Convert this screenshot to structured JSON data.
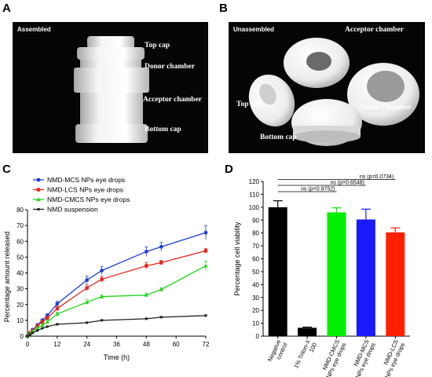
{
  "panels": {
    "a": "A",
    "b": "B",
    "c": "C",
    "d": "D"
  },
  "photo_a": {
    "title": "Assembled",
    "labels": [
      "Top cap",
      "Donor chamber",
      "Acceptor chamber",
      "Bottom cap"
    ]
  },
  "photo_b": {
    "title": "Unassembled",
    "labels": [
      "Acceptor chamber",
      "Top cap",
      "Donor Chamber",
      "Bottom cap"
    ]
  },
  "chart_data": [
    {
      "type": "line",
      "xlabel": "Time (h)",
      "ylabel": "Percentage amount released",
      "xlim": [
        0,
        72
      ],
      "ylim": [
        0,
        80
      ],
      "xticks": [
        0,
        12,
        24,
        36,
        48,
        60,
        72
      ],
      "yticks": [
        0,
        10,
        20,
        30,
        40,
        50,
        60,
        70,
        80
      ],
      "legend_position": "top-left",
      "grid": false,
      "series": [
        {
          "name": "NMD-MCS NPs eye drops",
          "color": "#1f3fd6",
          "marker": "circle",
          "x": [
            0,
            1,
            2,
            4,
            6,
            8,
            12,
            24,
            30,
            48,
            54,
            72
          ],
          "y": [
            0,
            2,
            4,
            7,
            10,
            13,
            20.5,
            35.5,
            41.5,
            53.5,
            56.5,
            65.5
          ],
          "err": [
            0,
            0.5,
            0.6,
            0.8,
            1,
            1.2,
            1.5,
            2.5,
            2.5,
            3,
            2.8,
            4.5
          ]
        },
        {
          "name": "NMD-LCS NPs eye drops",
          "color": "#e5261f",
          "marker": "square",
          "x": [
            0,
            1,
            2,
            4,
            6,
            8,
            12,
            24,
            30,
            48,
            54,
            72
          ],
          "y": [
            0,
            2,
            3.5,
            6.5,
            9,
            11.5,
            17.5,
            30.5,
            36,
            44.5,
            46.5,
            54
          ],
          "err": [
            0,
            0.5,
            0.6,
            0.8,
            1,
            1.2,
            1.5,
            2,
            2,
            2,
            1.5,
            1.5
          ]
        },
        {
          "name": "NMD-CMCS NPs eye drops",
          "color": "#22d61e",
          "marker": "triangle",
          "x": [
            0,
            1,
            2,
            4,
            6,
            8,
            12,
            24,
            30,
            48,
            54,
            72
          ],
          "y": [
            0,
            1.5,
            3,
            5,
            7,
            9,
            14,
            21.5,
            25,
            26,
            29.5,
            44.5
          ],
          "err": [
            0,
            0.5,
            0.5,
            0.6,
            0.8,
            1,
            1.2,
            1.5,
            1,
            1,
            1,
            3
          ]
        },
        {
          "name": "NMD suspension",
          "color": "#222222",
          "marker": "square",
          "x": [
            0,
            1,
            2,
            4,
            6,
            8,
            12,
            24,
            30,
            48,
            54,
            72
          ],
          "y": [
            0,
            1,
            2,
            3.5,
            5,
            6,
            7.5,
            8.5,
            10,
            11,
            12,
            13
          ],
          "err": [
            0,
            0.3,
            0.3,
            0.4,
            0.4,
            0.4,
            0.5,
            0.5,
            0.5,
            0.5,
            0.5,
            0.5
          ]
        }
      ]
    },
    {
      "type": "bar",
      "ylabel": "Percentage cell viability",
      "ylim": [
        0,
        120
      ],
      "yticks": [
        0,
        10,
        20,
        30,
        40,
        50,
        60,
        70,
        80,
        90,
        100,
        110,
        120
      ],
      "grid": false,
      "categories": [
        "Negative control",
        "1% Triton-X 100",
        "NMD-CMCS NPs eye drops",
        "NMD-MCS NPs eye drops",
        "NMD-LCS NPs eye drops"
      ],
      "category_lines": [
        [
          "Negative",
          "control"
        ],
        [
          "1% Triton-X",
          "100"
        ],
        [
          "NMD-CMCS",
          "NPs eye drops"
        ],
        [
          "NMD-MCS",
          "NPs eye drops"
        ],
        [
          "NMD-LCS",
          "NPs eye drops"
        ]
      ],
      "values": [
        100,
        6.5,
        96,
        90.5,
        80.5
      ],
      "errors": [
        5,
        0.5,
        3.5,
        8,
        3.5
      ],
      "colors": [
        "#000000",
        "#000000",
        "#00f000",
        "#1a1aff",
        "#ff2000"
      ],
      "annotations": [
        {
          "text": "ns (p=0.9752)",
          "from": 0,
          "to": 2
        },
        {
          "text": "ns (p=0.6548)",
          "from": 0,
          "to": 3
        },
        {
          "text": "ns (p=0.0734)",
          "from": 0,
          "to": 4
        }
      ]
    }
  ]
}
